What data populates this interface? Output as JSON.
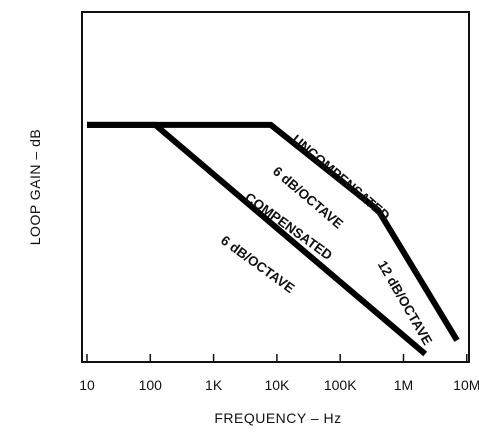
{
  "chart_data": {
    "type": "line",
    "title": "",
    "xlabel": "FREQUENCY – Hz",
    "ylabel": "LOOP GAIN – dB",
    "x_scale": "log",
    "xlim": [
      10,
      10000000
    ],
    "x_ticks": [
      {
        "value": 10,
        "label": "10"
      },
      {
        "value": 100,
        "label": "100"
      },
      {
        "value": 1000,
        "label": "1K"
      },
      {
        "value": 10000,
        "label": "10K"
      },
      {
        "value": 100000,
        "label": "100K"
      },
      {
        "value": 1000000,
        "label": "1M"
      },
      {
        "value": 10000000,
        "label": "10M"
      }
    ],
    "y_units": "relative (0 = bottom axis, 1 = top of frame)",
    "ylim": [
      0,
      1
    ],
    "grid": false,
    "series": [
      {
        "name": "UNCOMPENSATED",
        "points": [
          {
            "x": 10,
            "y": 0.67
          },
          {
            "x": 8000,
            "y": 0.67
          },
          {
            "x": 400000,
            "y": 0.42
          },
          {
            "x": 7000000,
            "y": 0.04
          }
        ]
      },
      {
        "name": "COMPENSATED",
        "points": [
          {
            "x": 10,
            "y": 0.67
          },
          {
            "x": 120,
            "y": 0.67
          },
          {
            "x": 2200000,
            "y": 0.0
          }
        ]
      }
    ],
    "annotations": [
      {
        "text": "UNCOMPENSATED"
      },
      {
        "text": "6 dB/OCTAVE"
      },
      {
        "text": "12 dB/OCTAVE"
      },
      {
        "text": "COMPENSATED"
      },
      {
        "text": "6 dB/OCTAVE"
      }
    ]
  }
}
